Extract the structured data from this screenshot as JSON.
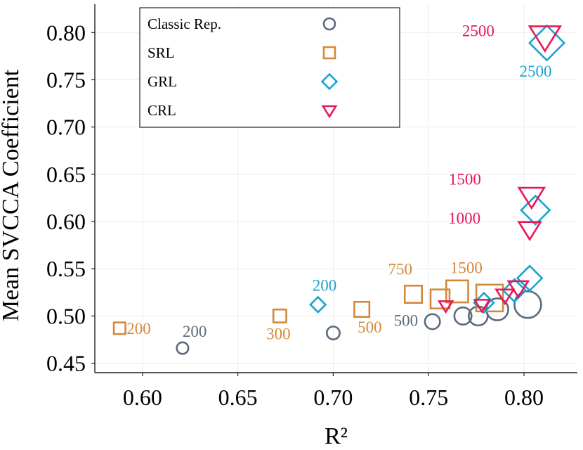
{
  "chart_data": {
    "type": "scatter",
    "title": "",
    "xlabel": "R²",
    "ylabel": "Mean SVCCA Coefficient",
    "xlim": [
      0.575,
      0.828
    ],
    "ylim": [
      0.44,
      0.83
    ],
    "x_ticks": [
      0.6,
      0.65,
      0.7,
      0.75,
      0.8
    ],
    "x_tick_labels": [
      "0.60",
      "0.65",
      "0.70",
      "0.75",
      "0.80"
    ],
    "y_ticks": [
      0.45,
      0.5,
      0.55,
      0.6,
      0.65,
      0.7,
      0.75,
      0.8
    ],
    "y_tick_labels": [
      "0.45",
      "0.50",
      "0.55",
      "0.60",
      "0.65",
      "0.70",
      "0.75",
      "0.80"
    ],
    "grid": true,
    "legend_position": "top-left",
    "colors": {
      "classic": "#5b6b7d",
      "srl": "#d4893a",
      "grl": "#1ba3cf",
      "crl": "#e8185a"
    },
    "series": [
      {
        "key": "classic",
        "name": "Classic Rep.",
        "marker": "circle",
        "points": [
          {
            "x": 0.621,
            "y": 0.466,
            "sample_size": 200
          },
          {
            "x": 0.7,
            "y": 0.482,
            "sample_size": 300
          },
          {
            "x": 0.752,
            "y": 0.494,
            "sample_size": 500
          },
          {
            "x": 0.768,
            "y": 0.5,
            "sample_size": 750
          },
          {
            "x": 0.776,
            "y": 0.5,
            "sample_size": 1000
          },
          {
            "x": 0.786,
            "y": 0.507,
            "sample_size": 1500
          },
          {
            "x": 0.802,
            "y": 0.512,
            "sample_size": 2500
          }
        ]
      },
      {
        "key": "srl",
        "name": "SRL",
        "marker": "square",
        "points": [
          {
            "x": 0.588,
            "y": 0.487,
            "sample_size": 200
          },
          {
            "x": 0.672,
            "y": 0.5,
            "sample_size": 300
          },
          {
            "x": 0.715,
            "y": 0.507,
            "sample_size": 500
          },
          {
            "x": 0.742,
            "y": 0.523,
            "sample_size": 750
          },
          {
            "x": 0.756,
            "y": 0.518,
            "sample_size": 1000
          },
          {
            "x": 0.765,
            "y": 0.526,
            "sample_size": 1500
          },
          {
            "x": 0.782,
            "y": 0.519,
            "sample_size": 2500
          }
        ]
      },
      {
        "key": "grl",
        "name": "GRL",
        "marker": "diamond",
        "points": [
          {
            "x": 0.692,
            "y": 0.512,
            "sample_size": 200
          },
          {
            "x": 0.779,
            "y": 0.514,
            "sample_size": 500
          },
          {
            "x": 0.795,
            "y": 0.527,
            "sample_size": 750
          },
          {
            "x": 0.803,
            "y": 0.54,
            "sample_size": 1000
          },
          {
            "x": 0.806,
            "y": 0.612,
            "sample_size": 1500
          },
          {
            "x": 0.812,
            "y": 0.789,
            "sample_size": 2500
          }
        ]
      },
      {
        "key": "crl",
        "name": "CRL",
        "marker": "triangle-down",
        "points": [
          {
            "x": 0.759,
            "y": 0.511,
            "sample_size": 200
          },
          {
            "x": 0.778,
            "y": 0.512,
            "sample_size": 300
          },
          {
            "x": 0.79,
            "y": 0.522,
            "sample_size": 500
          },
          {
            "x": 0.797,
            "y": 0.53,
            "sample_size": 750
          },
          {
            "x": 0.803,
            "y": 0.592,
            "sample_size": 1000
          },
          {
            "x": 0.804,
            "y": 0.627,
            "sample_size": 1500
          },
          {
            "x": 0.811,
            "y": 0.796,
            "sample_size": 2500
          }
        ]
      }
    ],
    "annotations": [
      {
        "series": "classic",
        "text": "200",
        "x": 0.621,
        "y": 0.466
      },
      {
        "series": "classic",
        "text": "500",
        "x": 0.752,
        "y": 0.494
      },
      {
        "series": "srl",
        "text": "200",
        "x": 0.588,
        "y": 0.487
      },
      {
        "series": "srl",
        "text": "300",
        "x": 0.672,
        "y": 0.5
      },
      {
        "series": "srl",
        "text": "500",
        "x": 0.715,
        "y": 0.507
      },
      {
        "series": "srl",
        "text": "750",
        "x": 0.742,
        "y": 0.523
      },
      {
        "series": "srl",
        "text": "1500",
        "x": 0.765,
        "y": 0.526
      },
      {
        "series": "grl",
        "text": "200",
        "x": 0.692,
        "y": 0.512
      },
      {
        "series": "grl",
        "text": "2500",
        "x": 0.812,
        "y": 0.789
      },
      {
        "series": "crl",
        "text": "2500",
        "x": 0.811,
        "y": 0.796
      },
      {
        "series": "crl",
        "text": "1500",
        "x": 0.804,
        "y": 0.627
      },
      {
        "series": "crl",
        "text": "1000",
        "x": 0.803,
        "y": 0.592
      }
    ]
  }
}
